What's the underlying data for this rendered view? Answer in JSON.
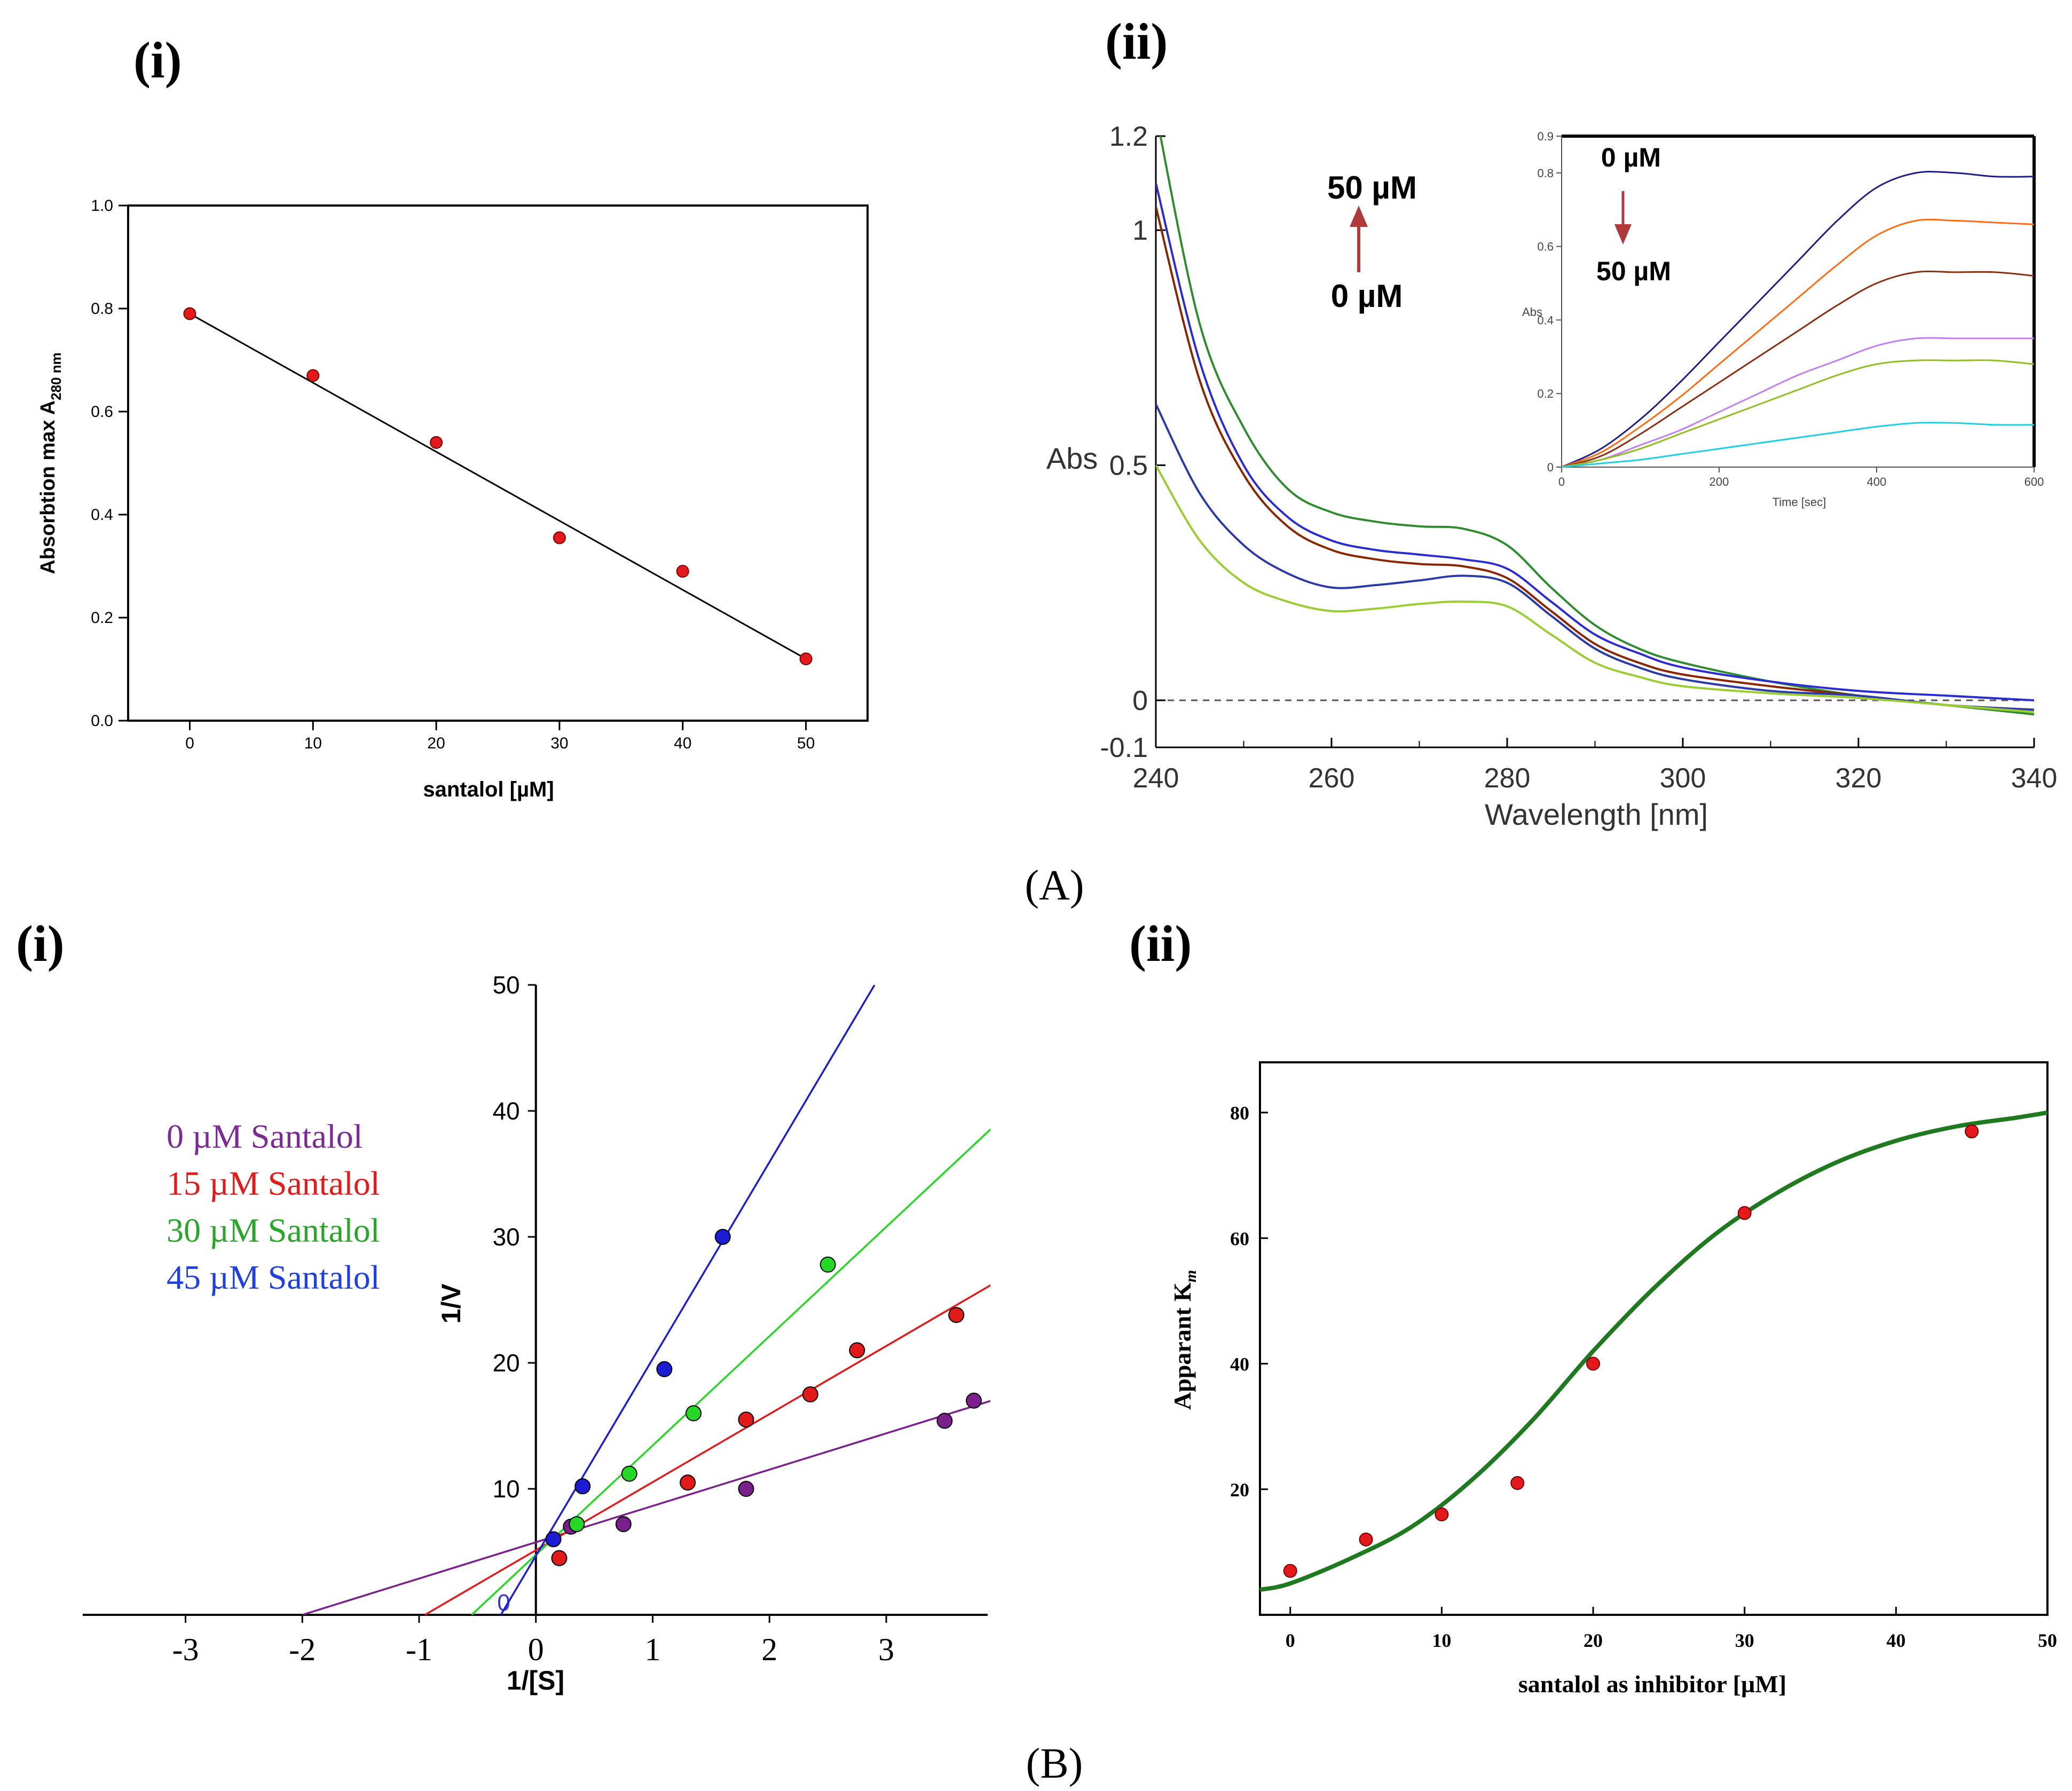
{
  "figure": {
    "group_a_label": "(A)",
    "group_b_label": "(B)",
    "panels": [
      {
        "label": "(i)"
      },
      {
        "label": "(ii)"
      },
      {
        "label": "(i)"
      },
      {
        "label": "(ii)"
      }
    ]
  },
  "chart_data": [
    {
      "id": "A-i",
      "type": "scatter",
      "title": "",
      "xlabel": "santalol [µM]",
      "ylabel_main": "Absorbtion max A",
      "ylabel_sub": "280 nm",
      "xlim": [
        -5,
        55
      ],
      "ylim": [
        0,
        1.0
      ],
      "xticks": [
        0,
        10,
        20,
        30,
        40,
        50
      ],
      "yticks": [
        0.0,
        0.2,
        0.4,
        0.6,
        0.8,
        1.0
      ],
      "ytick_labels": [
        "0.0",
        "0.2",
        "0.4",
        "0.6",
        "0.8",
        "1.0"
      ],
      "grid": false,
      "marker_color": "#e3191c",
      "series": [
        {
          "x": [
            0,
            10,
            20,
            30,
            40,
            50
          ],
          "y": [
            0.79,
            0.67,
            0.54,
            0.355,
            0.29,
            0.12
          ]
        }
      ],
      "fit_line": {
        "x": [
          0,
          50
        ],
        "y": [
          0.79,
          0.12
        ]
      }
    },
    {
      "id": "A-ii",
      "type": "line",
      "title": "",
      "xlabel": "Wavelength [nm]",
      "ylabel": "Abs",
      "xlim": [
        240,
        340
      ],
      "ylim": [
        -0.1,
        1.2
      ],
      "xticks": [
        240,
        260,
        280,
        300,
        320,
        340
      ],
      "yticks": [
        -0.1,
        0,
        0.5,
        1,
        1.2
      ],
      "ytick_labels": [
        "-0.1",
        "0",
        "0.5",
        "1",
        "1.2"
      ],
      "grid": false,
      "zero_line": true,
      "annotation_top": "50 µM",
      "annotation_bottom": "0 µM",
      "arrow_color": "#b03a3a",
      "x": [
        240,
        245,
        250,
        255,
        260,
        265,
        270,
        275,
        280,
        285,
        290,
        295,
        300,
        310,
        320,
        330,
        340
      ],
      "series": [
        {
          "color": "#2e8b2e",
          "values": [
            1.25,
            0.8,
            0.58,
            0.45,
            0.4,
            0.38,
            0.37,
            0.365,
            0.33,
            0.24,
            0.16,
            0.11,
            0.08,
            0.04,
            0.01,
            -0.01,
            -0.03
          ]
        },
        {
          "color": "#2b2bd4",
          "values": [
            1.1,
            0.72,
            0.5,
            0.39,
            0.34,
            0.32,
            0.31,
            0.3,
            0.28,
            0.21,
            0.14,
            0.1,
            0.07,
            0.04,
            0.02,
            0.01,
            0.0
          ]
        },
        {
          "color": "#8b2500",
          "values": [
            1.05,
            0.68,
            0.48,
            0.37,
            0.32,
            0.3,
            0.29,
            0.285,
            0.26,
            0.19,
            0.12,
            0.08,
            0.055,
            0.03,
            0.01,
            -0.01,
            -0.02
          ]
        },
        {
          "color": "#2b3aa8",
          "values": [
            0.63,
            0.44,
            0.33,
            0.27,
            0.24,
            0.245,
            0.255,
            0.265,
            0.25,
            0.18,
            0.11,
            0.07,
            0.045,
            0.02,
            0.01,
            -0.01,
            -0.02
          ]
        },
        {
          "color": "#9acd32",
          "values": [
            0.5,
            0.34,
            0.25,
            0.21,
            0.19,
            0.195,
            0.205,
            0.21,
            0.2,
            0.14,
            0.08,
            0.05,
            0.03,
            0.015,
            0.005,
            -0.01,
            -0.025
          ]
        }
      ]
    },
    {
      "id": "A-ii-inset",
      "type": "line",
      "title": "",
      "xlabel": "Time [sec]",
      "ylabel": "Abs",
      "xlim": [
        0,
        600
      ],
      "ylim": [
        0,
        0.9
      ],
      "xticks": [
        0,
        200,
        400,
        600
      ],
      "yticks": [
        0,
        0.2,
        0.4,
        0.6,
        0.8,
        0.9
      ],
      "ytick_labels": [
        "0",
        "0.2",
        "0.4",
        "0.6",
        "0.8",
        "0.9"
      ],
      "grid": false,
      "annotation_top": "0 µM",
      "annotation_bottom": "50 µM",
      "arrow_color": "#b03a3a",
      "x": [
        0,
        50,
        100,
        150,
        200,
        250,
        300,
        350,
        400,
        450,
        500,
        550,
        600
      ],
      "series": [
        {
          "color": "#1c1c8c",
          "values": [
            0,
            0.05,
            0.13,
            0.23,
            0.34,
            0.45,
            0.56,
            0.67,
            0.76,
            0.8,
            0.8,
            0.79,
            0.79
          ]
        },
        {
          "color": "#ff6a13",
          "values": [
            0,
            0.04,
            0.11,
            0.19,
            0.28,
            0.37,
            0.46,
            0.55,
            0.63,
            0.67,
            0.67,
            0.665,
            0.66
          ]
        },
        {
          "color": "#8b2e10",
          "values": [
            0,
            0.03,
            0.09,
            0.16,
            0.23,
            0.3,
            0.37,
            0.44,
            0.5,
            0.53,
            0.53,
            0.53,
            0.52
          ]
        },
        {
          "color": "#c07ff0",
          "values": [
            0,
            0.02,
            0.06,
            0.1,
            0.15,
            0.2,
            0.25,
            0.29,
            0.33,
            0.35,
            0.35,
            0.35,
            0.35
          ]
        },
        {
          "color": "#8fbf1e",
          "values": [
            0,
            0.02,
            0.05,
            0.09,
            0.13,
            0.17,
            0.21,
            0.25,
            0.28,
            0.29,
            0.29,
            0.29,
            0.28
          ]
        },
        {
          "color": "#1fd0e0",
          "values": [
            0,
            0.01,
            0.02,
            0.035,
            0.05,
            0.065,
            0.08,
            0.095,
            0.11,
            0.12,
            0.12,
            0.115,
            0.115
          ]
        }
      ]
    },
    {
      "id": "B-i",
      "type": "scatter",
      "title": "",
      "xlabel": "1/[S]",
      "ylabel": "1/V",
      "xlim": [
        -3.9,
        3.9
      ],
      "ylim": [
        -1,
        50
      ],
      "xticks": [
        -3,
        -2,
        -1,
        0,
        1,
        2,
        3
      ],
      "xtick_labels": [
        "-3",
        "-2",
        "-1",
        "0",
        "1",
        "2",
        "3"
      ],
      "yticks": [
        10,
        20,
        30,
        40,
        50
      ],
      "ytick_labels": [
        "10",
        "20",
        "30",
        "40",
        "50"
      ],
      "y_zero_label": "0",
      "grid": false,
      "legend": "left",
      "series": [
        {
          "name": "0 µM Santalol",
          "color": "#7a1f8c",
          "text_color": "#7d2a96",
          "x": [
            0.3,
            0.75,
            1.8,
            3.5,
            3.75
          ],
          "y": [
            7,
            7.2,
            10,
            15.4,
            17
          ],
          "fit": {
            "x": [
              -2.0,
              3.9
            ],
            "y": [
              0,
              17
            ]
          }
        },
        {
          "name": "15 µM Santalol",
          "color": "#e21a1a",
          "text_color": "#e21a1a",
          "x": [
            0.2,
            1.3,
            1.8,
            2.35,
            2.75,
            3.6
          ],
          "y": [
            4.5,
            10.5,
            15.5,
            17.5,
            21,
            23.8
          ],
          "fit": {
            "x": [
              -0.95,
              3.9
            ],
            "y": [
              0,
              26.2
            ]
          }
        },
        {
          "name": "30 µM Santalol",
          "color": "#26d826",
          "text_color": "#2aa52a",
          "x": [
            0.35,
            0.8,
            1.35,
            2.5
          ],
          "y": [
            7.2,
            11.2,
            16,
            27.8
          ],
          "fit": {
            "x": [
              -0.55,
              3.9
            ],
            "y": [
              0,
              38.6
            ]
          }
        },
        {
          "name": "45 µM Santalol",
          "color": "#1c1cd4",
          "text_color": "#1f3fe0",
          "x": [
            0.15,
            0.4,
            1.1,
            1.6
          ],
          "y": [
            6,
            10.2,
            19.5,
            30
          ],
          "fit": {
            "x": [
              -0.3,
              2.9
            ],
            "y": [
              0,
              50
            ]
          }
        }
      ]
    },
    {
      "id": "B-ii",
      "type": "scatter",
      "title": "",
      "xlabel": "santalol as inhibitor [µM]",
      "ylabel_main": "Apparant K",
      "ylabel_sub": "m",
      "xlim": [
        -2,
        50
      ],
      "ylim": [
        0,
        88
      ],
      "xticks": [
        0,
        10,
        20,
        30,
        40,
        50
      ],
      "yticks": [
        20,
        40,
        60,
        80
      ],
      "grid": false,
      "marker_color": "#e3191c",
      "curve_color": "#1f7a1f",
      "series": [
        {
          "x": [
            0,
            5,
            10,
            15,
            20,
            30,
            45
          ],
          "y": [
            7,
            12,
            16,
            21,
            40,
            64,
            77
          ]
        }
      ],
      "fit_curve": {
        "x": [
          -2,
          0,
          4,
          8,
          12,
          16,
          20,
          24,
          28,
          32,
          36,
          40,
          44,
          48,
          50
        ],
        "y": [
          4,
          5,
          9,
          14,
          21.5,
          31,
          42,
          52,
          60.5,
          67,
          72,
          75.5,
          77.8,
          79.2,
          80
        ]
      }
    }
  ]
}
